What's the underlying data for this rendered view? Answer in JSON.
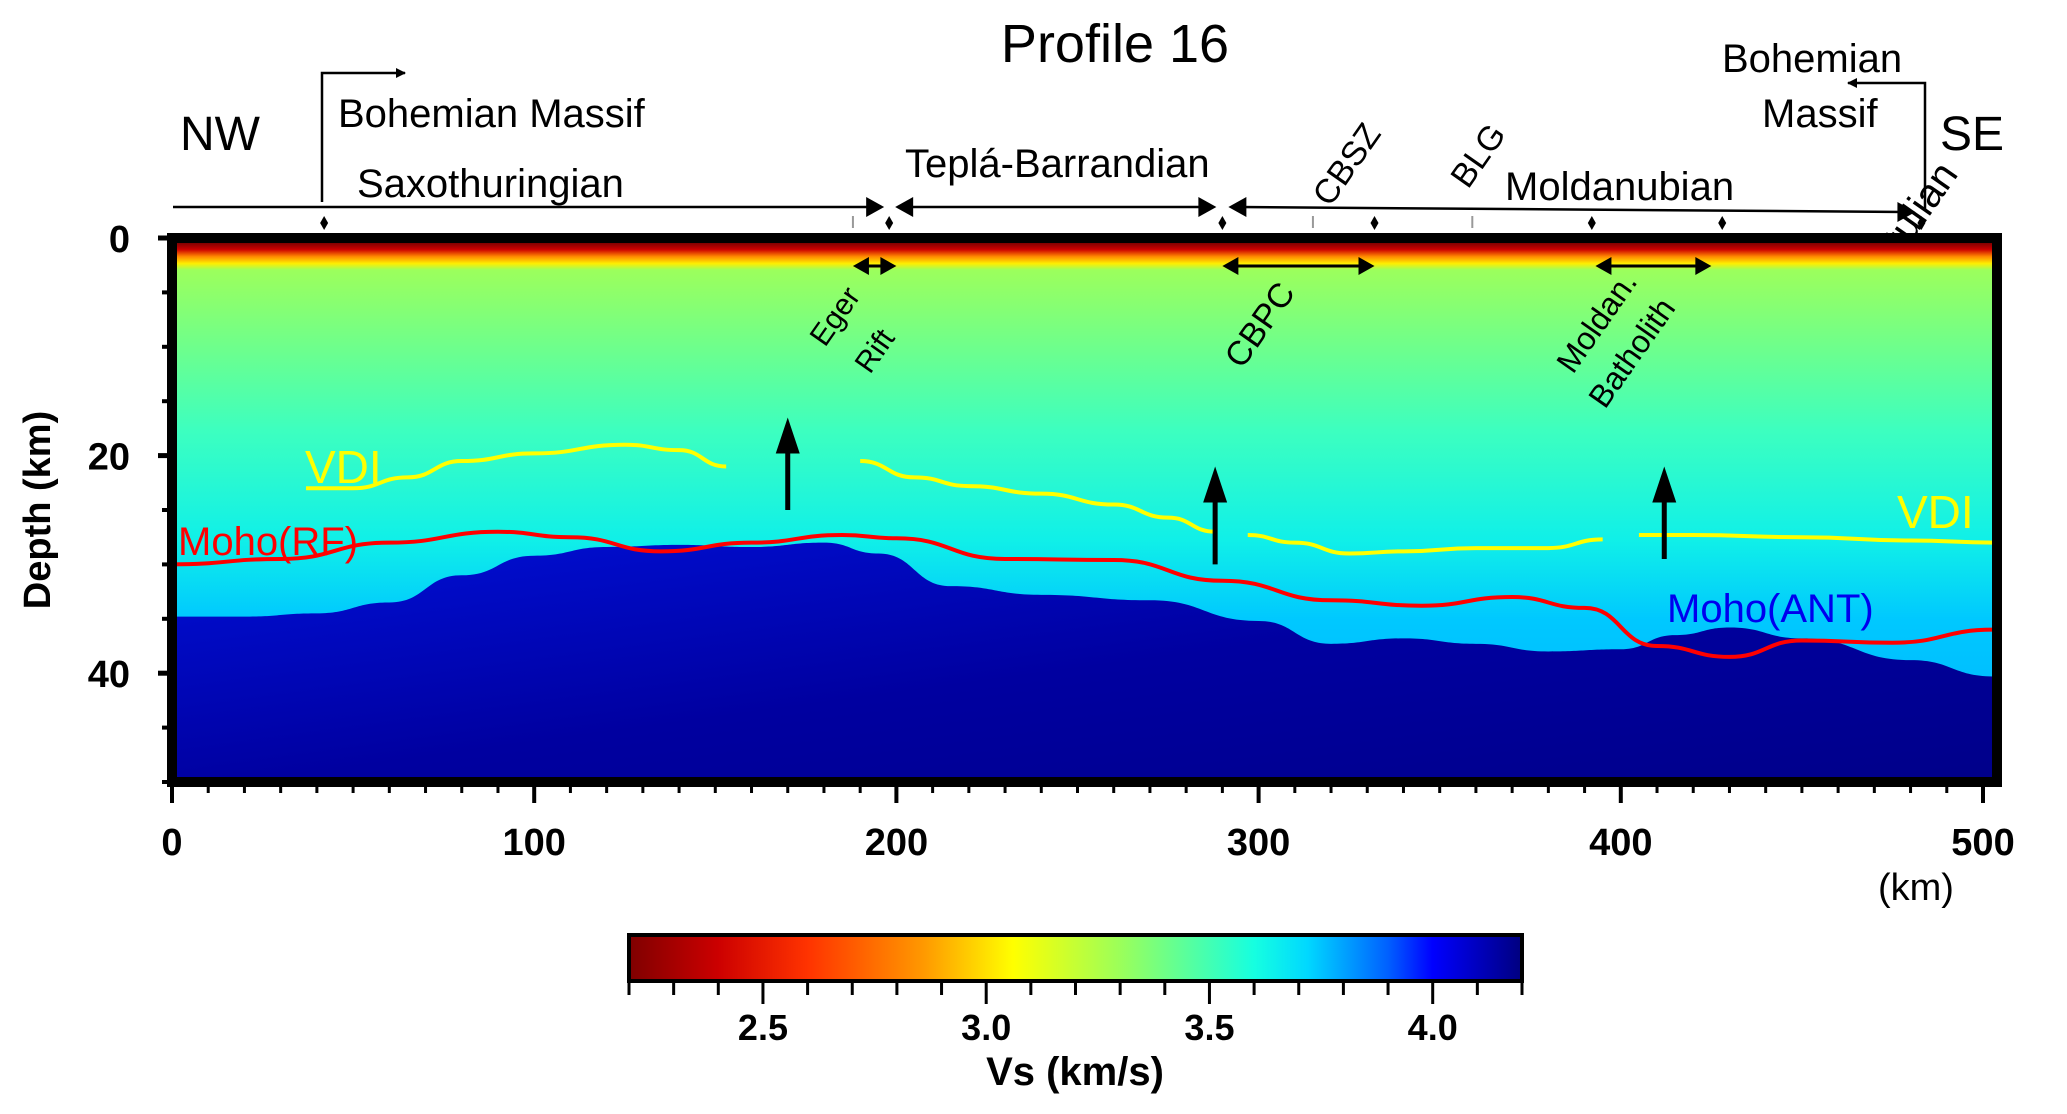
{
  "chart_data": {
    "type": "heatmap",
    "title": "Profile 16",
    "xlabel": "(km)",
    "ylabel": "Depth (km)",
    "xlim": [
      0,
      503
    ],
    "ylim": [
      50,
      0
    ],
    "x_ticks": [
      0,
      100,
      200,
      300,
      400,
      500
    ],
    "x_tick_labels": [
      "0",
      "100",
      "200",
      "300",
      "400",
      "500"
    ],
    "y_ticks": [
      0,
      20,
      40
    ],
    "y_tick_labels": [
      "0",
      "20",
      "40"
    ],
    "colorbar": {
      "label": "Vs (km/s)",
      "range": [
        2.2,
        4.2
      ],
      "ticks": [
        2.5,
        3.0,
        3.5,
        4.0
      ],
      "tick_labels": [
        "2.5",
        "3.0",
        "3.5",
        "4.0"
      ],
      "colormap": "jet"
    },
    "direction_labels": {
      "left": "NW",
      "right": "SE"
    },
    "series": [
      {
        "name": "VDI",
        "color": "#ffff00",
        "segments": [
          {
            "x": [
              37,
              50,
              65,
              80,
              100,
              125,
              140,
              153
            ],
            "y": [
              23,
              23,
              22,
              20.5,
              19.8,
              19,
              19.5,
              21
            ]
          },
          {
            "x": [
              190,
              205,
              220,
              240,
              260,
              275,
              288
            ],
            "y": [
              20.5,
              22,
              22.8,
              23.5,
              24.5,
              25.7,
              27
            ]
          },
          {
            "x": [
              297,
              310,
              325,
              340,
              360,
              380,
              395
            ],
            "y": [
              27.3,
              28,
              29,
              28.8,
              28.5,
              28.5,
              27.7
            ]
          },
          {
            "x": [
              405,
              420,
              450,
              480,
              503
            ],
            "y": [
              27.3,
              27.3,
              27.5,
              27.8,
              28
            ]
          }
        ]
      },
      {
        "name": "Moho(RF)",
        "color": "#ff0000",
        "x": [
          0,
          30,
          60,
          90,
          110,
          135,
          160,
          185,
          200,
          230,
          260,
          290,
          320,
          345,
          370,
          390,
          410,
          430,
          450,
          475,
          503
        ],
        "y": [
          30,
          29.5,
          28,
          27,
          27.5,
          28.8,
          28,
          27.3,
          27.6,
          29.5,
          29.6,
          31.5,
          33.3,
          33.8,
          33,
          34,
          37.5,
          38.5,
          37,
          37.2,
          36
        ]
      },
      {
        "name": "Moho(ANT)",
        "color": "#0000dd",
        "x": [
          0,
          20,
          40,
          60,
          80,
          100,
          120,
          140,
          160,
          180,
          195,
          215,
          240,
          270,
          300,
          320,
          340,
          360,
          380,
          400,
          415,
          430,
          450,
          480,
          503
        ],
        "y": [
          34.8,
          34.8,
          34.5,
          33.5,
          31,
          29.2,
          28.4,
          28.2,
          28.4,
          28,
          29,
          32,
          32.8,
          33.3,
          35.2,
          37.3,
          36.8,
          37.3,
          38,
          37.8,
          36.5,
          35.8,
          36.8,
          38.8,
          40.3
        ]
      }
    ],
    "arrows_up": [
      {
        "x": 170,
        "from_depth": 25,
        "to_depth": 16.5
      },
      {
        "x": 288,
        "from_depth": 30,
        "to_depth": 21
      },
      {
        "x": 412,
        "from_depth": 29.5,
        "to_depth": 21
      }
    ],
    "line_labels": [
      "VDI",
      "Moho(RF)",
      "VDI",
      "Moho(ANT)"
    ],
    "annotations": {
      "bohemian_massif_left": "Bohemian Massif",
      "bohemian_massif_right_1": "Bohemian",
      "bohemian_massif_right_2": "Massif",
      "units_top": [
        {
          "label": "Saxothuringian",
          "from": 0,
          "to": 198
        },
        {
          "label": "Teplá-Barrandian",
          "from": 198,
          "to": 290
        },
        {
          "label": "Moldanubian",
          "from": 290,
          "to": 483
        }
      ],
      "rotated_top": [
        "CBSZ",
        "BLG",
        "Brunovistulian"
      ],
      "inside": [
        {
          "label1": "Eger",
          "label2": "Rift",
          "from": 188,
          "to": 200
        },
        {
          "label1": "CBPC",
          "from": 290,
          "to": 332
        },
        {
          "label1": "Moldan.",
          "label2": "Batholith",
          "from": 393,
          "to": 425
        }
      ],
      "diamond_markers_km": [
        42,
        198,
        290,
        332,
        392,
        428,
        483
      ],
      "gray_markers_km": [
        188,
        315,
        359
      ]
    }
  }
}
